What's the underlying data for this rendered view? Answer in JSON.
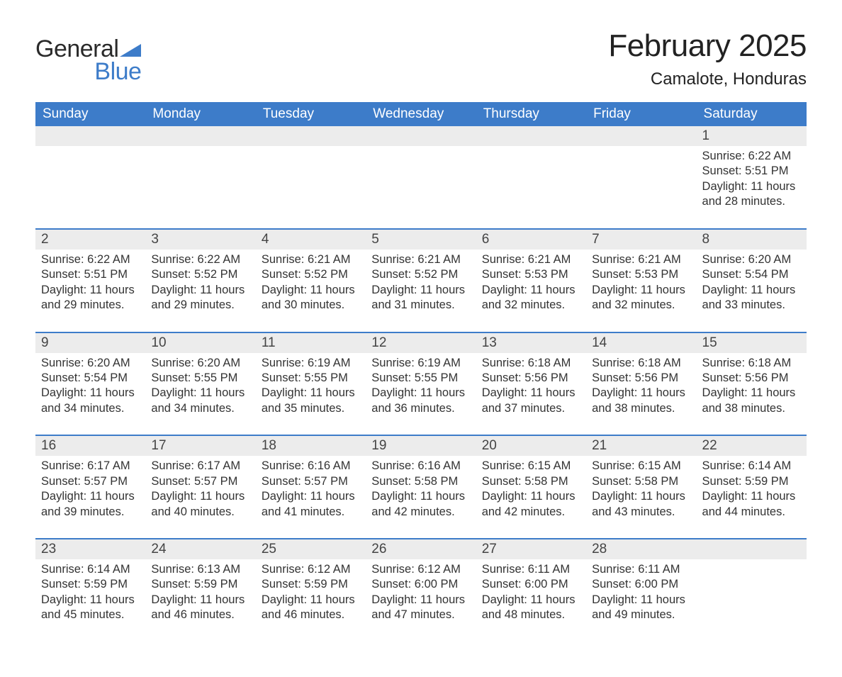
{
  "brand": {
    "part1": "General",
    "part2": "Blue",
    "flag_color": "#3d7cc9"
  },
  "title": "February 2025",
  "location": "Camalote, Honduras",
  "colors": {
    "header_bg": "#3d7cc9",
    "header_text": "#ffffff",
    "daynum_bg": "#ececec",
    "week_border": "#3d7cc9",
    "body_text": "#333333",
    "page_bg": "#ffffff"
  },
  "typography": {
    "title_fontsize": 44,
    "location_fontsize": 24,
    "header_fontsize": 19,
    "daynum_fontsize": 19,
    "cell_fontsize": 16.5,
    "font_family": "Arial, Helvetica, sans-serif"
  },
  "day_names": [
    "Sunday",
    "Monday",
    "Tuesday",
    "Wednesday",
    "Thursday",
    "Friday",
    "Saturday"
  ],
  "weeks": [
    [
      null,
      null,
      null,
      null,
      null,
      null,
      {
        "n": "1",
        "sunrise": "Sunrise: 6:22 AM",
        "sunset": "Sunset: 5:51 PM",
        "daylight": "Daylight: 11 hours and 28 minutes."
      }
    ],
    [
      {
        "n": "2",
        "sunrise": "Sunrise: 6:22 AM",
        "sunset": "Sunset: 5:51 PM",
        "daylight": "Daylight: 11 hours and 29 minutes."
      },
      {
        "n": "3",
        "sunrise": "Sunrise: 6:22 AM",
        "sunset": "Sunset: 5:52 PM",
        "daylight": "Daylight: 11 hours and 29 minutes."
      },
      {
        "n": "4",
        "sunrise": "Sunrise: 6:21 AM",
        "sunset": "Sunset: 5:52 PM",
        "daylight": "Daylight: 11 hours and 30 minutes."
      },
      {
        "n": "5",
        "sunrise": "Sunrise: 6:21 AM",
        "sunset": "Sunset: 5:52 PM",
        "daylight": "Daylight: 11 hours and 31 minutes."
      },
      {
        "n": "6",
        "sunrise": "Sunrise: 6:21 AM",
        "sunset": "Sunset: 5:53 PM",
        "daylight": "Daylight: 11 hours and 32 minutes."
      },
      {
        "n": "7",
        "sunrise": "Sunrise: 6:21 AM",
        "sunset": "Sunset: 5:53 PM",
        "daylight": "Daylight: 11 hours and 32 minutes."
      },
      {
        "n": "8",
        "sunrise": "Sunrise: 6:20 AM",
        "sunset": "Sunset: 5:54 PM",
        "daylight": "Daylight: 11 hours and 33 minutes."
      }
    ],
    [
      {
        "n": "9",
        "sunrise": "Sunrise: 6:20 AM",
        "sunset": "Sunset: 5:54 PM",
        "daylight": "Daylight: 11 hours and 34 minutes."
      },
      {
        "n": "10",
        "sunrise": "Sunrise: 6:20 AM",
        "sunset": "Sunset: 5:55 PM",
        "daylight": "Daylight: 11 hours and 34 minutes."
      },
      {
        "n": "11",
        "sunrise": "Sunrise: 6:19 AM",
        "sunset": "Sunset: 5:55 PM",
        "daylight": "Daylight: 11 hours and 35 minutes."
      },
      {
        "n": "12",
        "sunrise": "Sunrise: 6:19 AM",
        "sunset": "Sunset: 5:55 PM",
        "daylight": "Daylight: 11 hours and 36 minutes."
      },
      {
        "n": "13",
        "sunrise": "Sunrise: 6:18 AM",
        "sunset": "Sunset: 5:56 PM",
        "daylight": "Daylight: 11 hours and 37 minutes."
      },
      {
        "n": "14",
        "sunrise": "Sunrise: 6:18 AM",
        "sunset": "Sunset: 5:56 PM",
        "daylight": "Daylight: 11 hours and 38 minutes."
      },
      {
        "n": "15",
        "sunrise": "Sunrise: 6:18 AM",
        "sunset": "Sunset: 5:56 PM",
        "daylight": "Daylight: 11 hours and 38 minutes."
      }
    ],
    [
      {
        "n": "16",
        "sunrise": "Sunrise: 6:17 AM",
        "sunset": "Sunset: 5:57 PM",
        "daylight": "Daylight: 11 hours and 39 minutes."
      },
      {
        "n": "17",
        "sunrise": "Sunrise: 6:17 AM",
        "sunset": "Sunset: 5:57 PM",
        "daylight": "Daylight: 11 hours and 40 minutes."
      },
      {
        "n": "18",
        "sunrise": "Sunrise: 6:16 AM",
        "sunset": "Sunset: 5:57 PM",
        "daylight": "Daylight: 11 hours and 41 minutes."
      },
      {
        "n": "19",
        "sunrise": "Sunrise: 6:16 AM",
        "sunset": "Sunset: 5:58 PM",
        "daylight": "Daylight: 11 hours and 42 minutes."
      },
      {
        "n": "20",
        "sunrise": "Sunrise: 6:15 AM",
        "sunset": "Sunset: 5:58 PM",
        "daylight": "Daylight: 11 hours and 42 minutes."
      },
      {
        "n": "21",
        "sunrise": "Sunrise: 6:15 AM",
        "sunset": "Sunset: 5:58 PM",
        "daylight": "Daylight: 11 hours and 43 minutes."
      },
      {
        "n": "22",
        "sunrise": "Sunrise: 6:14 AM",
        "sunset": "Sunset: 5:59 PM",
        "daylight": "Daylight: 11 hours and 44 minutes."
      }
    ],
    [
      {
        "n": "23",
        "sunrise": "Sunrise: 6:14 AM",
        "sunset": "Sunset: 5:59 PM",
        "daylight": "Daylight: 11 hours and 45 minutes."
      },
      {
        "n": "24",
        "sunrise": "Sunrise: 6:13 AM",
        "sunset": "Sunset: 5:59 PM",
        "daylight": "Daylight: 11 hours and 46 minutes."
      },
      {
        "n": "25",
        "sunrise": "Sunrise: 6:12 AM",
        "sunset": "Sunset: 5:59 PM",
        "daylight": "Daylight: 11 hours and 46 minutes."
      },
      {
        "n": "26",
        "sunrise": "Sunrise: 6:12 AM",
        "sunset": "Sunset: 6:00 PM",
        "daylight": "Daylight: 11 hours and 47 minutes."
      },
      {
        "n": "27",
        "sunrise": "Sunrise: 6:11 AM",
        "sunset": "Sunset: 6:00 PM",
        "daylight": "Daylight: 11 hours and 48 minutes."
      },
      {
        "n": "28",
        "sunrise": "Sunrise: 6:11 AM",
        "sunset": "Sunset: 6:00 PM",
        "daylight": "Daylight: 11 hours and 49 minutes."
      },
      null
    ]
  ]
}
